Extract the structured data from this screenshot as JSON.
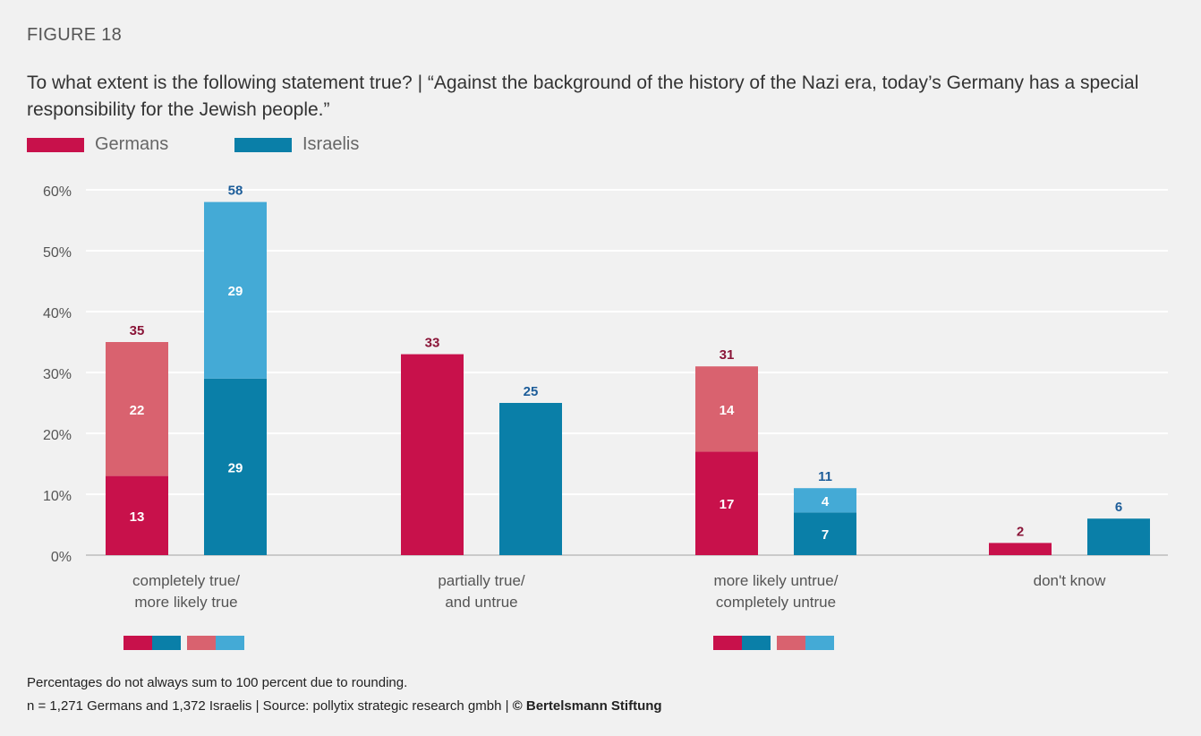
{
  "figure_label": "FIGURE 18",
  "title": "To what extent is the following statement true? | “Against the background of the history of the Nazi era, today’s Germany has a special responsibility for the Jewish people.”",
  "legend": [
    {
      "label": "Germans",
      "color": "#c8114b"
    },
    {
      "label": "Israelis",
      "color": "#0a7fa8"
    }
  ],
  "footnote": {
    "line1": "Percentages do not always sum to 100 percent due to rounding.",
    "line2_prefix": "n = 1,271 Germans and 1,372 Israelis  |  Source:  pollytix strategic research gmbh  |  ",
    "line2_bold": "© Bertelsmann Stiftung"
  },
  "colors": {
    "germans_dark": "#c8114b",
    "germans_light": "#d9626f",
    "israelis_dark": "#0a7fa8",
    "israelis_light": "#44aad6",
    "germans_label": "#8a1538",
    "israelis_label": "#1d5d99"
  },
  "chart_data": {
    "type": "bar",
    "stacked": true,
    "title": "To what extent is the following statement true? | “Against the background of the history of the Nazi era, today’s Germany has a special responsibility for the Jewish people.”",
    "categories": [
      [
        "completely true/",
        "more likely true"
      ],
      [
        "partially true/",
        "and untrue"
      ],
      [
        "more likely untrue/",
        "completely untrue"
      ],
      [
        "don't know"
      ]
    ],
    "ylim": [
      0,
      60
    ],
    "yticks": [
      0,
      10,
      20,
      30,
      40,
      50,
      60
    ],
    "ytick_labels": [
      "0%",
      "10%",
      "20%",
      "30%",
      "40%",
      "50%",
      "60%"
    ],
    "grid": true,
    "series": [
      {
        "name": "Germans",
        "totals": [
          35,
          33,
          31,
          2
        ],
        "segments": [
          [
            13,
            22
          ],
          [
            33
          ],
          [
            17,
            14
          ],
          [
            2
          ]
        ]
      },
      {
        "name": "Israelis",
        "totals": [
          58,
          25,
          11,
          6
        ],
        "segments": [
          [
            29,
            29
          ],
          [
            25
          ],
          [
            7,
            4
          ],
          [
            6
          ]
        ]
      }
    ],
    "segment_key": [
      "dark",
      "light"
    ]
  }
}
